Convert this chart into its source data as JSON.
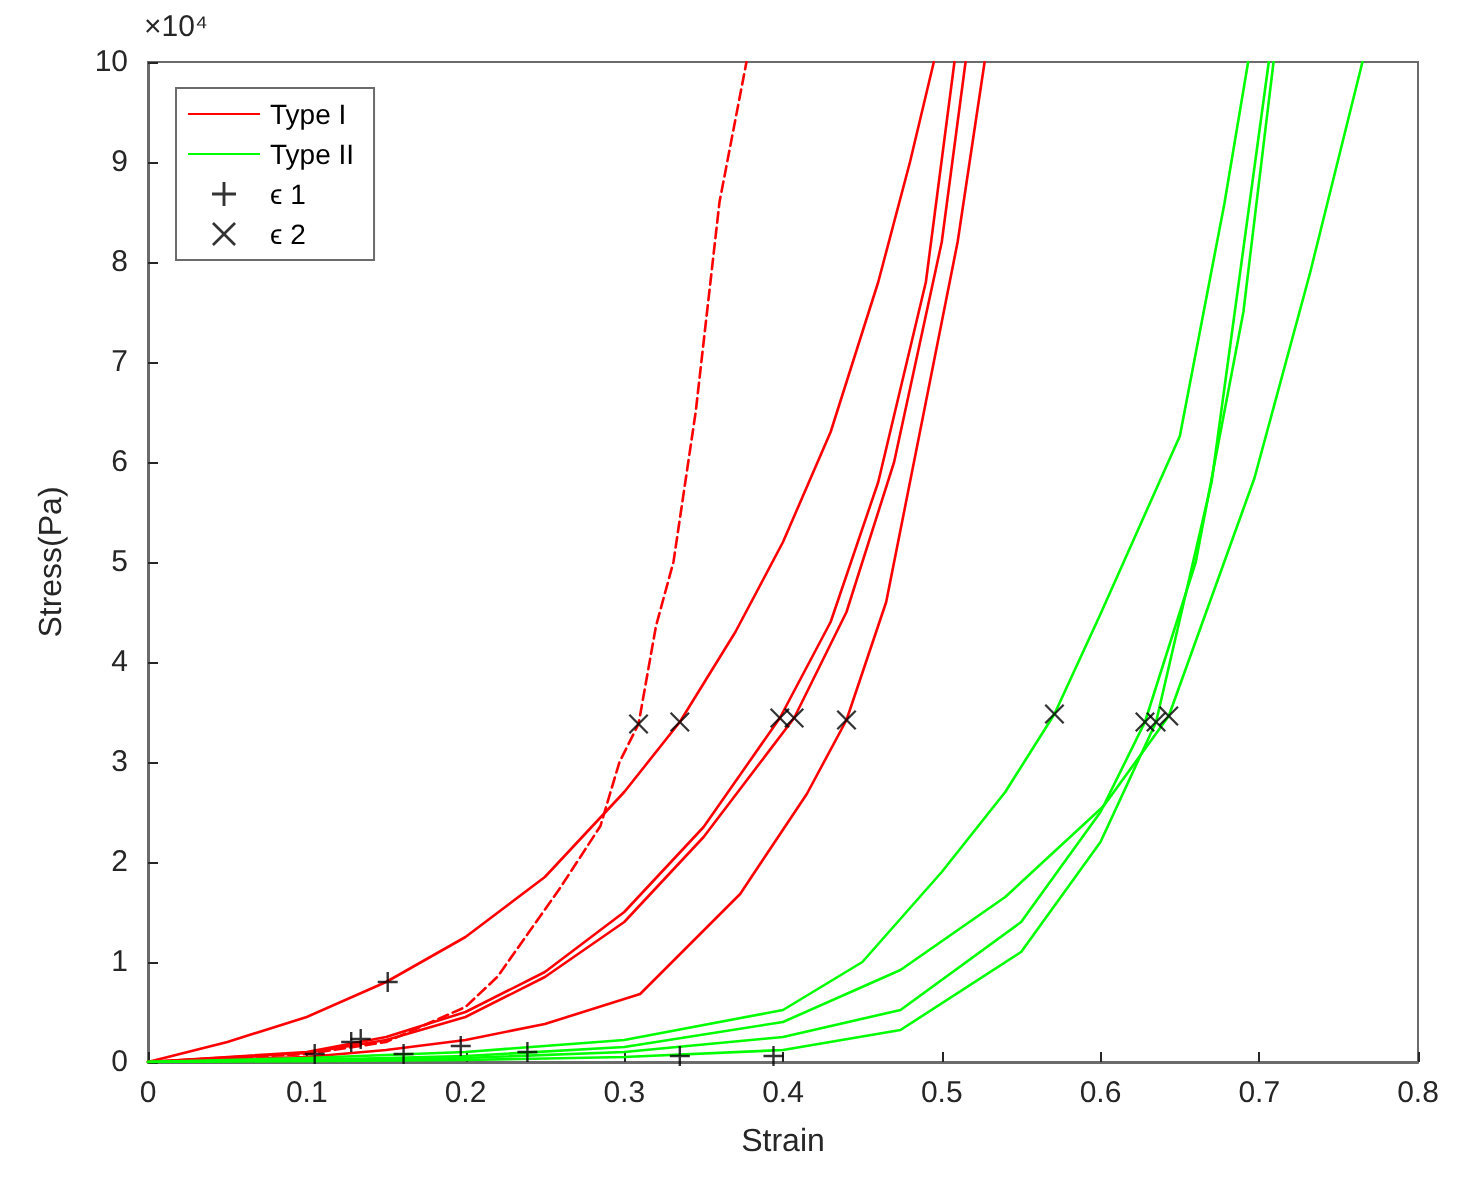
{
  "chart_data": {
    "type": "line",
    "xlabel": "Strain",
    "ylabel": "Stress(Pa)",
    "annotations": [
      "×10⁴"
    ],
    "xlim": [
      0,
      0.8
    ],
    "xticks": [
      0,
      0.1,
      0.2,
      0.3,
      0.4,
      0.5,
      0.6,
      0.7,
      0.8
    ],
    "ylim": [
      0,
      10
    ],
    "yticks": [
      0,
      1,
      2,
      3,
      4,
      5,
      6,
      7,
      8,
      9,
      10
    ],
    "grid": false,
    "legend": "top left",
    "marker": "none",
    "line_style": "solid",
    "series": [
      {
        "name": "Type I",
        "color": "#ff0000",
        "x": [
          0,
          0.05,
          0.1,
          0.15,
          0.2,
          0.25,
          0.3,
          0.335,
          0.37,
          0.4,
          0.43,
          0.46,
          0.48,
          0.495
        ],
        "values": [
          0,
          0.2,
          0.45,
          0.8,
          1.25,
          1.85,
          2.7,
          3.4,
          4.3,
          5.2,
          6.3,
          7.8,
          9,
          10
        ]
      },
      {
        "color": "#ff0000",
        "line_style": "dashed",
        "x": [
          0,
          0.1,
          0.15,
          0.2,
          0.22,
          0.24,
          0.26,
          0.285,
          0.297,
          0.309,
          0.32,
          0.331,
          0.345,
          0.36,
          0.377
        ],
        "values": [
          0,
          0.08,
          0.2,
          0.55,
          0.85,
          1.3,
          1.75,
          2.36,
          3,
          3.38,
          4.36,
          5,
          6.5,
          8.6,
          10
        ]
      },
      {
        "color": "#ff0000",
        "x": [
          0,
          0.1,
          0.15,
          0.2,
          0.25,
          0.3,
          0.35,
          0.398,
          0.43,
          0.46,
          0.49,
          0.508
        ],
        "values": [
          0,
          0.1,
          0.25,
          0.5,
          0.9,
          1.5,
          2.35,
          3.44,
          4.4,
          5.8,
          7.8,
          10
        ]
      },
      {
        "color": "#ff0000",
        "x": [
          0,
          0.1,
          0.15,
          0.2,
          0.25,
          0.3,
          0.35,
          0.407,
          0.44,
          0.47,
          0.5,
          0.515
        ],
        "values": [
          0,
          0.09,
          0.22,
          0.45,
          0.85,
          1.4,
          2.25,
          3.44,
          4.5,
          6,
          8.2,
          10
        ]
      },
      {
        "color": "#ff0000",
        "x": [
          0,
          0.1,
          0.15,
          0.2,
          0.25,
          0.31,
          0.373,
          0.415,
          0.44,
          0.465,
          0.49,
          0.51,
          0.527
        ],
        "values": [
          0,
          0.05,
          0.12,
          0.22,
          0.38,
          0.68,
          1.68,
          2.68,
          3.42,
          4.6,
          6.6,
          8.2,
          10
        ]
      },
      {
        "name": "Type II",
        "color": "#00ff00",
        "x": [
          0,
          0.1,
          0.2,
          0.3,
          0.4,
          0.45,
          0.5,
          0.54,
          0.571,
          0.6,
          0.65,
          0.678,
          0.693
        ],
        "values": [
          0,
          0.04,
          0.1,
          0.22,
          0.52,
          1,
          1.9,
          2.7,
          3.48,
          4.48,
          6.26,
          8.58,
          10
        ]
      },
      {
        "color": "#00ff00",
        "x": [
          0,
          0.2,
          0.3,
          0.4,
          0.474,
          0.55,
          0.6,
          0.628,
          0.66,
          0.69,
          0.709
        ],
        "values": [
          0,
          0.04,
          0.1,
          0.25,
          0.52,
          1.4,
          2.5,
          3.4,
          5,
          7.5,
          10
        ]
      },
      {
        "color": "#00ff00",
        "x": [
          0,
          0.2,
          0.3,
          0.4,
          0.474,
          0.55,
          0.6,
          0.635,
          0.67,
          0.706
        ],
        "values": [
          0,
          0.02,
          0.05,
          0.12,
          0.32,
          1.1,
          2.2,
          3.4,
          5.8,
          10
        ]
      },
      {
        "color": "#00ff00",
        "x": [
          0,
          0.1,
          0.2,
          0.3,
          0.4,
          0.474,
          0.54,
          0.602,
          0.643,
          0.697,
          0.732,
          0.765
        ],
        "values": [
          0,
          0.02,
          0.06,
          0.15,
          0.4,
          0.92,
          1.65,
          2.56,
          3.46,
          5.84,
          7.89,
          10
        ]
      },
      {
        "name": "ϵ 1",
        "type": "scatter",
        "marker": "plus",
        "color": "#000000",
        "x": [
          0.151,
          0.105,
          0.128,
          0.134,
          0.161,
          0.197,
          0.239,
          0.335,
          0.394
        ],
        "values": [
          0.8,
          0.08,
          0.2,
          0.23,
          0.08,
          0.16,
          0.1,
          0.06,
          0.06
        ]
      },
      {
        "name": "ϵ 2",
        "type": "scatter",
        "marker": "cross",
        "color": "#000000",
        "x": [
          0.309,
          0.335,
          0.398,
          0.407,
          0.44,
          0.571,
          0.628,
          0.635,
          0.643
        ],
        "values": [
          3.38,
          3.4,
          3.44,
          3.44,
          3.42,
          3.48,
          3.4,
          3.4,
          3.46
        ]
      }
    ]
  }
}
